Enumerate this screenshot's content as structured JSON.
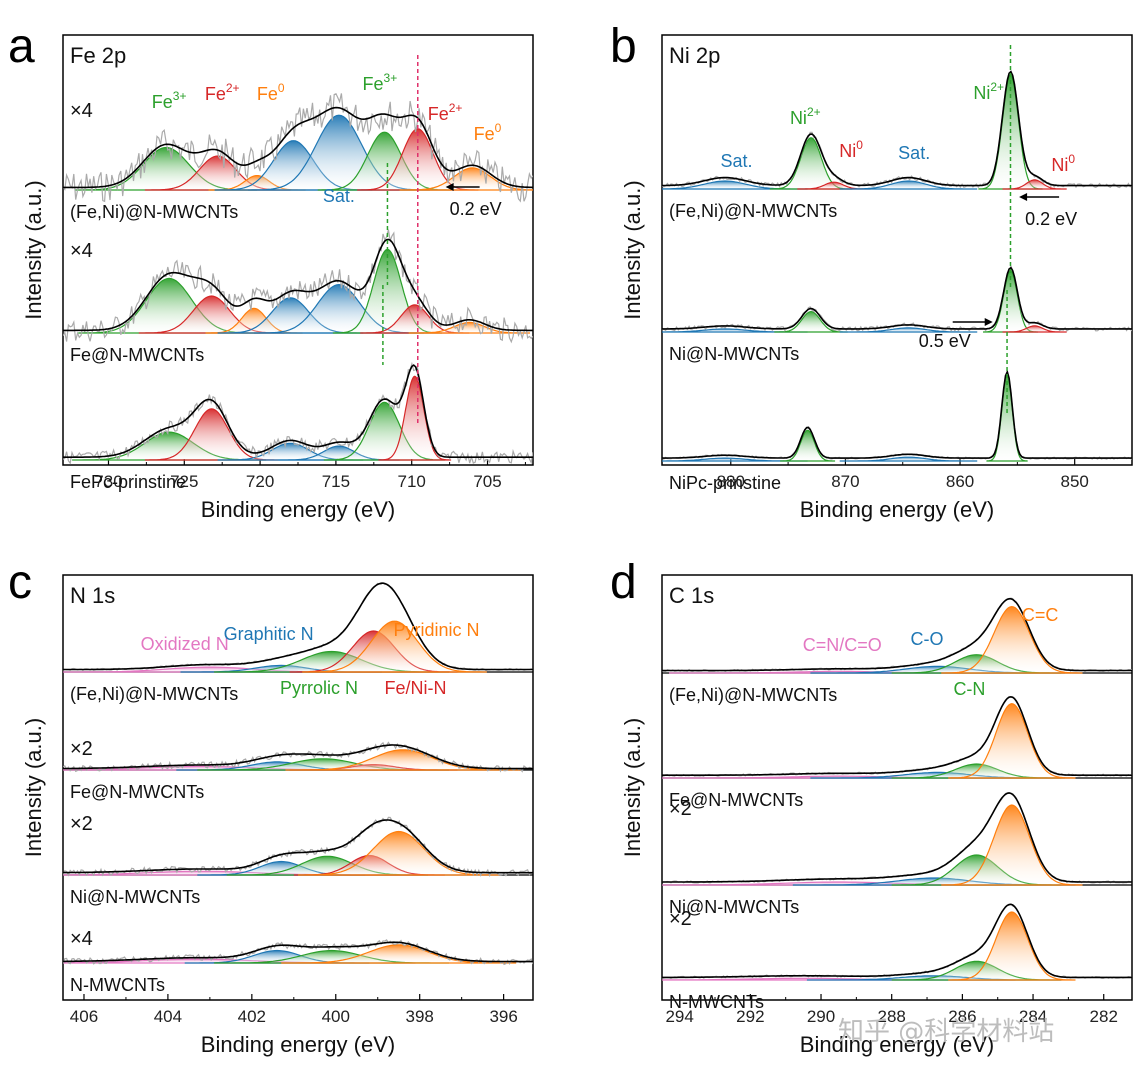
{
  "colors": {
    "Fe3": "#2ca02c",
    "Fe2": "#d62728",
    "Fe0": "#ff7f0e",
    "Sat": "#1f77b4",
    "Ni2": "#2ca02c",
    "Ni0": "#d62728",
    "Pyridinic": "#ff7f0e",
    "FeNiN": "#d62728",
    "Pyrrolic": "#2ca02c",
    "Graphitic": "#1f77b4",
    "Oxidized": "#e377c2",
    "CC": "#ff7f0e",
    "CN": "#2ca02c",
    "CO": "#1f77b4",
    "CNO": "#e377c2",
    "raw": "#aaaaaa",
    "envelope": "#000000",
    "fe_dash_red": "#e0306a",
    "fe_dash_green": "#2ca02c"
  },
  "watermark": "知乎 @科学材料站",
  "chart_data": [
    {
      "panel": "a",
      "type": "line",
      "core": "Fe 2p",
      "xlabel": "Binding energy (eV)",
      "ylabel": "Intensity (a.u.)",
      "xlim": [
        733,
        702
      ],
      "ticks": [
        730,
        725,
        720,
        715,
        710,
        705
      ],
      "shift_annotations": [
        {
          "text": "0.2 eV",
          "direction": "left"
        }
      ],
      "peak_labels": [
        {
          "text": "Fe",
          "sup": "3+",
          "color": "Fe3",
          "x": 726,
          "spectrum": 0,
          "dy": 82
        },
        {
          "text": "Fe",
          "sup": "2+",
          "color": "Fe2",
          "x": 722.5,
          "spectrum": 0,
          "dy": 90
        },
        {
          "text": "Fe",
          "sup": "0",
          "color": "Fe0",
          "x": 719.3,
          "spectrum": 0,
          "dy": 90
        },
        {
          "text": "Fe",
          "sup": "3+",
          "color": "Fe3",
          "x": 712.1,
          "spectrum": 0,
          "dy": 100
        },
        {
          "text": "Fe",
          "sup": "2+",
          "color": "Fe2",
          "x": 707.8,
          "spectrum": 0,
          "dy": 70
        },
        {
          "text": "Fe",
          "sup": "0",
          "color": "Fe0",
          "x": 705,
          "spectrum": 0,
          "dy": 50
        },
        {
          "text": "Sat.",
          "sup": "",
          "color": "Sat",
          "x": 714.8,
          "spectrum": 0,
          "dy": -12
        }
      ],
      "spectra": [
        {
          "label": "(Fe,Ni)@N-MWCNTs",
          "multiplier": "×4",
          "noise": 16,
          "scale": 1,
          "peaks": [
            [
              726.2,
              0.5,
              1.5,
              "Fe3"
            ],
            [
              722.8,
              0.4,
              1.2,
              "Fe2"
            ],
            [
              720.2,
              0.17,
              0.8,
              "Fe0"
            ],
            [
              717.8,
              0.58,
              1.3,
              "Sat"
            ],
            [
              714.8,
              0.88,
              1.5,
              "Sat"
            ],
            [
              711.8,
              0.68,
              1.1,
              "Fe3"
            ],
            [
              709.6,
              0.72,
              1.0,
              "Fe2"
            ],
            [
              706.0,
              0.26,
              1.2,
              "Fe0"
            ]
          ]
        },
        {
          "label": "Fe@N-MWCNTs",
          "multiplier": "×4",
          "noise": 12,
          "scale": 1,
          "peaks": [
            [
              726.0,
              0.62,
              1.5,
              "Fe3"
            ],
            [
              723.2,
              0.42,
              1.2,
              "Fe2"
            ],
            [
              720.4,
              0.28,
              0.8,
              "Fe0"
            ],
            [
              718.0,
              0.4,
              1.2,
              "Sat"
            ],
            [
              714.8,
              0.55,
              1.4,
              "Sat"
            ],
            [
              711.6,
              0.95,
              0.9,
              "Fe3"
            ],
            [
              709.8,
              0.32,
              0.9,
              "Fe2"
            ],
            [
              706.2,
              0.12,
              1.0,
              "Fe0"
            ]
          ]
        },
        {
          "label": "FePc-prinstine",
          "multiplier": "",
          "noise": 6,
          "scale": 1,
          "peaks": [
            [
              726.0,
              0.3,
              1.6,
              "Fe3"
            ],
            [
              723.2,
              0.55,
              1.1,
              "Fe2"
            ],
            [
              718.0,
              0.18,
              1.2,
              "Sat"
            ],
            [
              714.8,
              0.15,
              1.0,
              "Sat"
            ],
            [
              711.8,
              0.62,
              1.0,
              "Fe3"
            ],
            [
              709.8,
              0.9,
              0.6,
              "Fe2"
            ]
          ]
        }
      ]
    },
    {
      "panel": "b",
      "type": "line",
      "core": "Ni 2p",
      "xlabel": "Binding energy (eV)",
      "ylabel": "Intensity (a.u.)",
      "xlim": [
        886,
        845
      ],
      "ticks": [
        880,
        870,
        860,
        850
      ],
      "shift_annotations": [
        {
          "text": "0.2 eV",
          "direction": "left"
        },
        {
          "text": "0.5 eV",
          "direction": "right"
        }
      ],
      "peak_labels": [
        {
          "text": "Sat.",
          "sup": "",
          "color": "Sat",
          "x": 879.5,
          "spectrum": 0,
          "dy": 22
        },
        {
          "text": "Ni",
          "sup": "2+",
          "color": "Ni2",
          "x": 873.5,
          "spectrum": 0,
          "dy": 65
        },
        {
          "text": "Ni",
          "sup": "0",
          "color": "Ni0",
          "x": 869.5,
          "spectrum": 0,
          "dy": 32
        },
        {
          "text": "Sat.",
          "sup": "",
          "color": "Sat",
          "x": 864.0,
          "spectrum": 0,
          "dy": 30
        },
        {
          "text": "Ni",
          "sup": "2+",
          "color": "Ni2",
          "x": 857.5,
          "spectrum": 0,
          "dy": 90
        },
        {
          "text": "Ni",
          "sup": "0",
          "color": "Ni0",
          "x": 851.0,
          "spectrum": 0,
          "dy": 18
        }
      ],
      "spectra": [
        {
          "label": "(Fe,Ni)@N-MWCNTs",
          "multiplier": "",
          "noise": 2,
          "scale": 1,
          "peaks": [
            [
              880.5,
              0.07,
              1.8,
              "Sat"
            ],
            [
              873.0,
              0.45,
              0.9,
              "Ni2"
            ],
            [
              871.0,
              0.06,
              0.8,
              "Ni0"
            ],
            [
              864.5,
              0.07,
              1.5,
              "Sat"
            ],
            [
              855.6,
              1.0,
              0.7,
              "Ni2"
            ],
            [
              853.5,
              0.08,
              0.7,
              "Ni0"
            ]
          ]
        },
        {
          "label": "Ni@N-MWCNTs",
          "multiplier": "",
          "noise": 2,
          "scale": 1,
          "peaks": [
            [
              880.5,
              0.03,
              1.8,
              "Sat"
            ],
            [
              873.0,
              0.2,
              0.8,
              "Ni2"
            ],
            [
              864.5,
              0.04,
              1.5,
              "Sat"
            ],
            [
              855.6,
              0.6,
              0.6,
              "Ni2"
            ],
            [
              853.5,
              0.06,
              0.7,
              "Ni0"
            ]
          ]
        },
        {
          "label": "NiPc-prinstine",
          "multiplier": "",
          "noise": 1,
          "scale": 1,
          "peaks": [
            [
              880.5,
              0.03,
              1.8,
              "Sat"
            ],
            [
              873.3,
              0.32,
              0.6,
              "Ni2"
            ],
            [
              864.5,
              0.04,
              1.5,
              "Sat"
            ],
            [
              855.9,
              0.9,
              0.45,
              "Ni2"
            ]
          ]
        }
      ]
    },
    {
      "panel": "c",
      "type": "line",
      "core": "N 1s",
      "xlabel": "Binding energy (eV)",
      "ylabel": "Intensity (a.u.)",
      "xlim": [
        406.5,
        395.3
      ],
      "ticks": [
        406,
        404,
        402,
        400,
        398,
        396
      ],
      "shift_annotations": [],
      "peak_labels": [
        {
          "text": "Oxidized N",
          "sup": "",
          "color": "Oxidized",
          "x": 403.6,
          "spectrum": 0,
          "dy": 22
        },
        {
          "text": "Graphitic N",
          "sup": "",
          "color": "Graphitic",
          "x": 401.6,
          "spectrum": 0,
          "dy": 32
        },
        {
          "text": "Pyridinic N",
          "sup": "",
          "color": "Pyridinic",
          "x": 397.6,
          "spectrum": 0,
          "dy": 36
        },
        {
          "text": "Pyrrolic N",
          "sup": "",
          "color": "Pyrrolic",
          "x": 400.4,
          "spectrum": 0,
          "dy": -22
        },
        {
          "text": "Fe/Ni-N",
          "sup": "",
          "color": "FeNiN",
          "x": 398.1,
          "spectrum": 0,
          "dy": -22
        }
      ],
      "spectra": [
        {
          "label": "(Fe,Ni)@N-MWCNTs",
          "multiplier": "",
          "noise": 1,
          "scale": 1,
          "peaks": [
            [
              403.0,
              0.06,
              1.0,
              "Oxidized"
            ],
            [
              401.3,
              0.08,
              0.6,
              "Graphitic"
            ],
            [
              400.1,
              0.25,
              0.7,
              "Pyrrolic"
            ],
            [
              399.1,
              0.5,
              0.5,
              "FeNiN"
            ],
            [
              398.6,
              0.62,
              0.55,
              "Pyridinic"
            ]
          ]
        },
        {
          "label": "Fe@N-MWCNTs",
          "multiplier": "×2",
          "noise": 3,
          "scale": 1,
          "peaks": [
            [
              403.2,
              0.08,
              1.3,
              "Oxidized"
            ],
            [
              401.4,
              0.18,
              0.6,
              "Graphitic"
            ],
            [
              400.3,
              0.25,
              0.75,
              "Pyrrolic"
            ],
            [
              399.1,
              0.12,
              0.5,
              "FeNiN"
            ],
            [
              398.4,
              0.45,
              0.7,
              "Pyridinic"
            ]
          ]
        },
        {
          "label": "Ni@N-MWCNTs",
          "multiplier": "×2",
          "noise": 3,
          "scale": 1,
          "peaks": [
            [
              403.2,
              0.05,
              1.3,
              "Oxidized"
            ],
            [
              401.3,
              0.18,
              0.5,
              "Graphitic"
            ],
            [
              400.2,
              0.25,
              0.6,
              "Pyrrolic"
            ],
            [
              399.2,
              0.26,
              0.45,
              "FeNiN"
            ],
            [
              398.5,
              0.58,
              0.6,
              "Pyridinic"
            ]
          ]
        },
        {
          "label": "N-MWCNTs",
          "multiplier": "×4",
          "noise": 3,
          "scale": 1,
          "peaks": [
            [
              403.3,
              0.08,
              1.3,
              "Oxidized"
            ],
            [
              401.4,
              0.26,
              0.55,
              "Graphitic"
            ],
            [
              400.1,
              0.26,
              0.7,
              "Pyrrolic"
            ],
            [
              398.5,
              0.38,
              0.7,
              "Pyridinic"
            ]
          ]
        }
      ]
    },
    {
      "panel": "d",
      "type": "line",
      "core": "C 1s",
      "xlabel": "Binding energy (eV)",
      "ylabel": "Intensity (a.u.)",
      "xlim": [
        294.5,
        281.2
      ],
      "ticks": [
        294,
        292,
        290,
        288,
        286,
        284,
        282
      ],
      "shift_annotations": [],
      "peak_labels": [
        {
          "text": "C=N/C=O",
          "sup": "",
          "color": "CNO",
          "x": 289.4,
          "spectrum": 0,
          "dy": 22
        },
        {
          "text": "C-O",
          "sup": "",
          "color": "CO",
          "x": 287.0,
          "spectrum": 0,
          "dy": 28
        },
        {
          "text": "C=C",
          "sup": "",
          "color": "CC",
          "x": 283.8,
          "spectrum": 0,
          "dy": 52
        },
        {
          "text": "C-N",
          "sup": "",
          "color": "CN",
          "x": 285.8,
          "spectrum": 0,
          "dy": -22
        }
      ],
      "spectra": [
        {
          "label": "(Fe,Ni)@N-MWCNTs",
          "multiplier": "",
          "noise": 1,
          "scale": 1,
          "peaks": [
            [
              289.5,
              0.02,
              1.2,
              "CNO"
            ],
            [
              286.7,
              0.08,
              0.9,
              "CO"
            ],
            [
              285.6,
              0.22,
              0.6,
              "CN"
            ],
            [
              284.6,
              0.8,
              0.5,
              "CC"
            ]
          ]
        },
        {
          "label": "Fe@N-MWCNTs",
          "multiplier": "",
          "noise": 1,
          "scale": 1,
          "peaks": [
            [
              289.5,
              0.02,
              1.3,
              "CNO"
            ],
            [
              286.7,
              0.06,
              0.9,
              "CO"
            ],
            [
              285.6,
              0.15,
              0.6,
              "CN"
            ],
            [
              284.6,
              0.8,
              0.45,
              "CC"
            ]
          ]
        },
        {
          "label": "Ni@N-MWCNTs",
          "multiplier": "×2",
          "noise": 1,
          "scale": 1,
          "peaks": [
            [
              289.5,
              0.03,
              1.5,
              "CNO"
            ],
            [
              286.8,
              0.07,
              1.0,
              "CO"
            ],
            [
              285.6,
              0.3,
              0.6,
              "CN"
            ],
            [
              284.6,
              0.8,
              0.5,
              "CC"
            ]
          ]
        },
        {
          "label": "N-MWCNTs",
          "multiplier": "×2",
          "noise": 1,
          "scale": 1,
          "peaks": [
            [
              290.5,
              0.02,
              1.5,
              "CNO"
            ],
            [
              286.8,
              0.05,
              0.9,
              "CO"
            ],
            [
              285.6,
              0.22,
              0.6,
              "CN"
            ],
            [
              284.6,
              0.8,
              0.45,
              "CC"
            ]
          ]
        }
      ]
    }
  ]
}
